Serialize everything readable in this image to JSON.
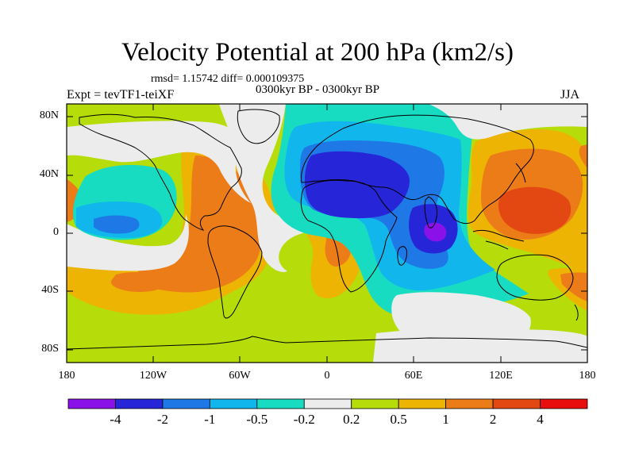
{
  "title": "Velocity Potential at 200 hPa (km2/s)",
  "stats": "rmsd= 1.15742 diff= 0.000109375",
  "experiment": "Expt = tevTF1-teiXF",
  "period": "0300kyr BP - 0300kyr BP",
  "season": "JJA",
  "lat_labels": [
    "80N",
    "40N",
    "0",
    "40S",
    "80S"
  ],
  "lon_labels": [
    "180",
    "120W",
    "60W",
    "0",
    "60E",
    "120E",
    "180"
  ],
  "colorbar": {
    "labels": [
      "-4",
      "-2",
      "-1",
      "-0.5",
      "-0.2",
      "0.2",
      "0.5",
      "1",
      "2",
      "4"
    ],
    "colors": [
      "#8a12e8",
      "#2626d8",
      "#1e78e6",
      "#10b6ec",
      "#18dcc2",
      "#ececec",
      "#b6dc0a",
      "#eeb404",
      "#ec7c18",
      "#e44812",
      "#e80e0e"
    ]
  },
  "field_colors": {
    "c_m4": "#8a12e8",
    "c_m2": "#2626d8",
    "c_m1": "#1e78e6",
    "c_m05": "#10b6ec",
    "c_m02": "#18dcc2",
    "c_0": "#ececec",
    "c_02": "#b6dc0a",
    "c_05": "#eeb404",
    "c_1": "#ec7c18",
    "c_2": "#e44812",
    "c_4": "#e80e0e"
  }
}
